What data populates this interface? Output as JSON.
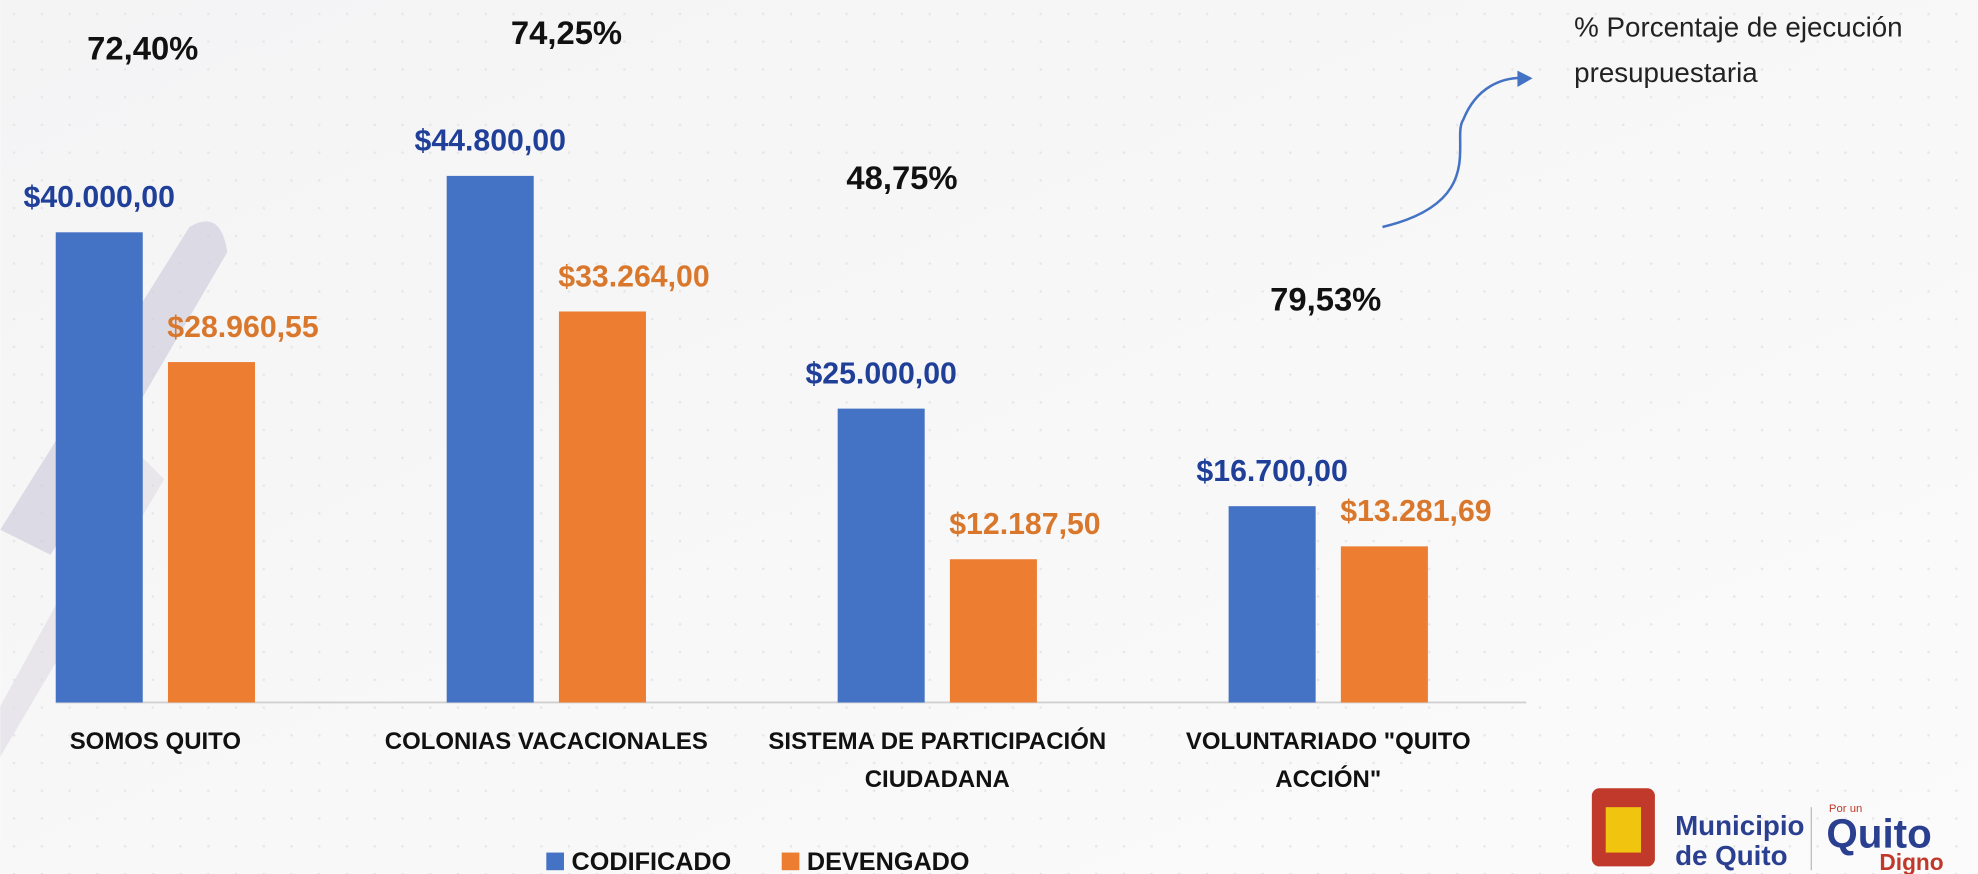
{
  "chart_data": {
    "type": "bar",
    "categories": [
      "SOMOS QUITO",
      "COLONIAS VACACIONALES",
      "SISTEMA DE PARTICIPACIÓN CIUDADANA",
      "VOLUNTARIADO \"QUITO ACCIÓN\""
    ],
    "series": [
      {
        "name": "CODIFICADO",
        "color": "#4472c4",
        "label_color": "#1f3f99",
        "values": [
          40000,
          44800,
          25000,
          16700
        ],
        "value_labels": [
          "$40.000,00",
          "$44.800,00",
          "$25.000,00",
          "$16.700,00"
        ]
      },
      {
        "name": "DEVENGADO",
        "color": "#ed7d31",
        "label_color": "#d9782d",
        "values": [
          28960.55,
          33264,
          12187.5,
          13281.69
        ],
        "value_labels": [
          "$28.960,55",
          "$33.264,00",
          "$12.187,50",
          "$13.281,69"
        ]
      }
    ],
    "ylim": [
      0,
      50000
    ],
    "execution_labels": [
      "72,40%",
      "74,25%",
      "48,75%",
      "79,53%"
    ],
    "annotation": [
      "% Porcentaje de ejecución",
      "presupuestaria"
    ],
    "legend": "bottom"
  },
  "logo": {
    "line1": "Municipio",
    "line2": "de Quito",
    "small": "Por un",
    "brand": "Quito",
    "tag": "Digno"
  }
}
